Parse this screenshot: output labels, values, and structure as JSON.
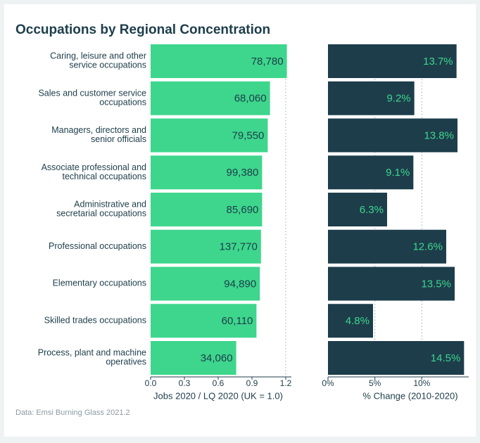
{
  "title": "Occupations by Regional Concentration",
  "source": "Data: Emsi Burning Glass 2021.2",
  "chart_data": [
    {
      "type": "hbar",
      "categories": [
        [
          "Caring, leisure and other",
          "service occupations"
        ],
        [
          "Sales and customer service",
          "occupations"
        ],
        [
          "Managers, directors and",
          "senior officials"
        ],
        [
          "Associate professional and",
          "technical occupations"
        ],
        [
          "Administrative and",
          "secretarial occupations"
        ],
        [
          "Professional occupations"
        ],
        [
          "Elementary occupations"
        ],
        [
          "Skilled trades occupations"
        ],
        [
          "Process, plant and machine",
          "operatives"
        ]
      ],
      "values": [
        1.21,
        1.06,
        1.04,
        0.99,
        0.99,
        0.98,
        0.97,
        0.94,
        0.76
      ],
      "bar_texts": [
        "78,780",
        "68,060",
        "79,550",
        "99,380",
        "85,690",
        "137,770",
        "94,890",
        "60,110",
        "34,060"
      ],
      "color": "#3dd68c",
      "text_color": "#1d3d4b",
      "xlabel": "Jobs 2020 / LQ 2020 (UK = 1.0)",
      "xlim": [
        0,
        1.25
      ],
      "xticks": [
        {
          "value": 0,
          "label": "0.0"
        },
        0.3,
        0.6,
        0.9,
        1.2
      ],
      "grid_at": [
        1.2
      ]
    },
    {
      "type": "hbar",
      "values": [
        13.7,
        9.2,
        13.8,
        9.1,
        6.3,
        12.6,
        13.5,
        4.8,
        14.5
      ],
      "value_labels": [
        "13.7%",
        "9.2%",
        "13.8%",
        "9.1%",
        "6.3%",
        "12.6%",
        "13.5%",
        "4.8%",
        "14.5%"
      ],
      "color": "#1d3d4b",
      "text_color": "#3dd68c",
      "xlabel": "% Change (2010-2020)",
      "xlim": [
        0,
        15
      ],
      "xticks": [
        {
          "value": 0,
          "label": "0%"
        },
        {
          "value": 5,
          "label": "5%"
        },
        {
          "value": 10,
          "label": "10%"
        }
      ],
      "grid_at": [
        5,
        10
      ]
    }
  ]
}
